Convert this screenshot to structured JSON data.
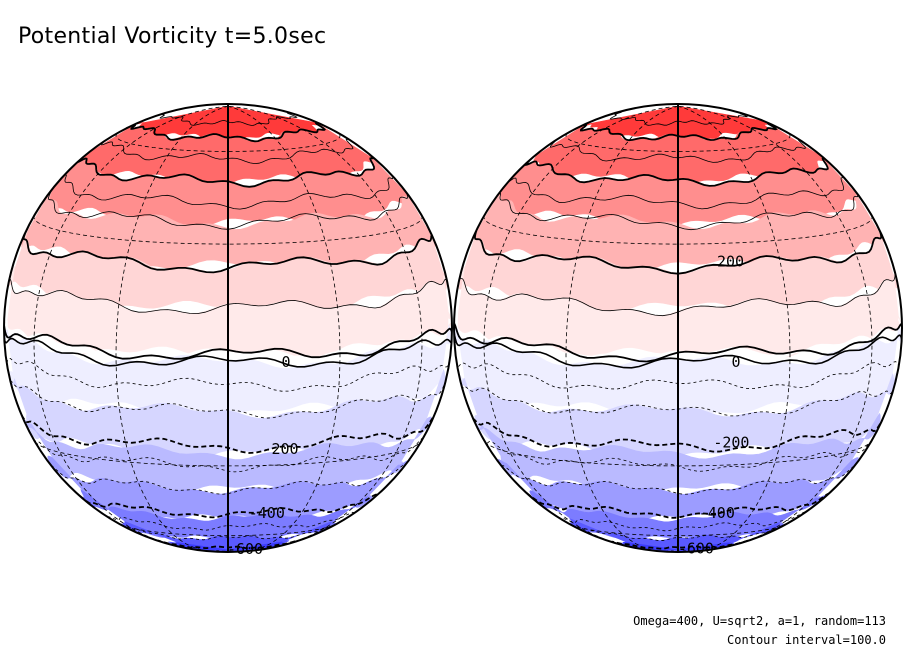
{
  "figure": {
    "title": "Potential Vorticity t=5.0sec",
    "params_line": "Omega=400, U=sqrt2, a=1, random=113",
    "contour_line": "Contour interval=100.0"
  },
  "colors": {
    "bands_north_to_south": [
      "#ff3a3a",
      "#ff6a6a",
      "#ff8e8e",
      "#ffb3b3",
      "#ffd6d6",
      "#ffeaea",
      "#ffffff",
      "#eeeeff",
      "#d6d6ff",
      "#babaff",
      "#9c9cff",
      "#7c7cff",
      "#5a5aff",
      "#3d3dff"
    ]
  },
  "globes": [
    {
      "name": "left-globe",
      "contour_labels": [
        {
          "text": "0",
          "lat": -1
        },
        {
          "text": "-200",
          "lat": -25
        },
        {
          "text": "-400",
          "lat": -48
        },
        {
          "text": "-600",
          "lat": -73
        }
      ]
    },
    {
      "name": "right-globe",
      "contour_labels": [
        {
          "text": "200",
          "lat": 25
        },
        {
          "text": "0",
          "lat": -1
        },
        {
          "text": "-200",
          "lat": -23
        },
        {
          "text": "-400",
          "lat": -48
        },
        {
          "text": "-600",
          "lat": -72
        }
      ]
    }
  ]
}
